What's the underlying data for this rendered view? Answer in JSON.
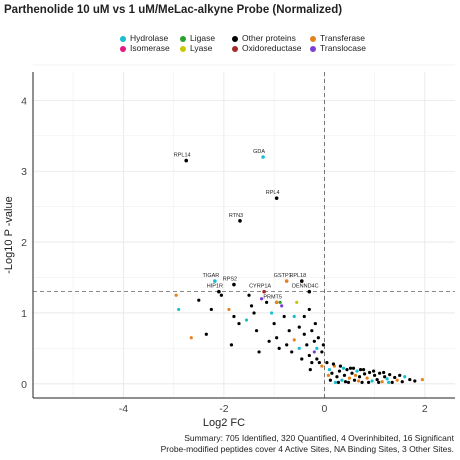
{
  "chart_data": {
    "type": "scatter",
    "title": "Parthenolide 10 uM vs 1 uM/MeLac-alkyne Probe (Normalized)",
    "xlabel": "Log2 FC",
    "ylabel": "-Log10 P -value",
    "xlim": [
      -5.8,
      2.6
    ],
    "ylim": [
      -0.2,
      4.4
    ],
    "x_ticks": [
      "-4",
      "-2",
      "0",
      "2"
    ],
    "y_ticks": [
      "0",
      "1",
      "2",
      "3",
      "4"
    ],
    "grid": true,
    "significance_line_y": 1.3,
    "fc_line_x": 0,
    "legend_position": "top",
    "legend": [
      {
        "name": "Hydrolase",
        "color": "#17becf"
      },
      {
        "name": "Ligase",
        "color": "#2ca02c"
      },
      {
        "name": "Other proteins",
        "color": "#000000"
      },
      {
        "name": "Transferase",
        "color": "#e6821e"
      },
      {
        "name": "Isomerase",
        "color": "#e6197a"
      },
      {
        "name": "Lyase",
        "color": "#c8c800"
      },
      {
        "name": "Oxidoreductase",
        "color": "#a52a2a"
      },
      {
        "name": "Translocase",
        "color": "#7b3fd1"
      }
    ],
    "labeled_points": [
      {
        "label": "RPL14",
        "x": -2.75,
        "y": 3.15,
        "cls": "Other proteins"
      },
      {
        "label": "GDA",
        "x": -1.22,
        "y": 3.2,
        "cls": "Hydrolase"
      },
      {
        "label": "RPL4",
        "x": -0.95,
        "y": 2.62,
        "cls": "Other proteins"
      },
      {
        "label": "RTN3",
        "x": -1.68,
        "y": 2.3,
        "cls": "Other proteins"
      },
      {
        "label": "TIGAR",
        "x": -2.18,
        "y": 1.45,
        "cls": "Hydrolase"
      },
      {
        "label": "RPS2",
        "x": -1.8,
        "y": 1.4,
        "cls": "Other proteins"
      },
      {
        "label": "GSTP1",
        "x": -0.75,
        "y": 1.45,
        "cls": "Transferase"
      },
      {
        "label": "RPL18",
        "x": -0.45,
        "y": 1.45,
        "cls": "Other proteins"
      },
      {
        "label": "HIP1R",
        "x": -2.1,
        "y": 1.3,
        "cls": "Other proteins"
      },
      {
        "label": "CYRP1A",
        "x": -1.2,
        "y": 1.3,
        "cls": "Oxidoreductase"
      },
      {
        "label": "DENND4C",
        "x": -0.3,
        "y": 1.3,
        "cls": "Other proteins"
      },
      {
        "label": "PRMT5",
        "x": -0.95,
        "y": 1.15,
        "cls": "Transferase"
      }
    ],
    "points": [
      {
        "x": -2.95,
        "y": 1.25,
        "cls": "Transferase"
      },
      {
        "x": -2.9,
        "y": 1.05,
        "cls": "Hydrolase"
      },
      {
        "x": -2.5,
        "y": 1.18,
        "cls": "Other proteins"
      },
      {
        "x": -2.25,
        "y": 1.05,
        "cls": "Other proteins"
      },
      {
        "x": -2.65,
        "y": 0.65,
        "cls": "Transferase"
      },
      {
        "x": -2.35,
        "y": 0.7,
        "cls": "Other proteins"
      },
      {
        "x": -2.05,
        "y": 1.25,
        "cls": "Other proteins"
      },
      {
        "x": -1.9,
        "y": 1.05,
        "cls": "Transferase"
      },
      {
        "x": -1.8,
        "y": 0.95,
        "cls": "Other proteins"
      },
      {
        "x": -1.7,
        "y": 0.85,
        "cls": "Other proteins"
      },
      {
        "x": -1.55,
        "y": 0.9,
        "cls": "Hydrolase"
      },
      {
        "x": -1.85,
        "y": 0.55,
        "cls": "Other proteins"
      },
      {
        "x": -1.5,
        "y": 1.25,
        "cls": "Other proteins"
      },
      {
        "x": -1.45,
        "y": 1.1,
        "cls": "Other proteins"
      },
      {
        "x": -1.4,
        "y": 1.0,
        "cls": "Other proteins"
      },
      {
        "x": -1.35,
        "y": 0.75,
        "cls": "Other proteins"
      },
      {
        "x": -1.3,
        "y": 0.45,
        "cls": "Other proteins"
      },
      {
        "x": -1.25,
        "y": 1.2,
        "cls": "Translocase"
      },
      {
        "x": -1.15,
        "y": 1.15,
        "cls": "Other proteins"
      },
      {
        "x": -1.1,
        "y": 0.6,
        "cls": "Other proteins"
      },
      {
        "x": -1.05,
        "y": 1.0,
        "cls": "Hydrolase"
      },
      {
        "x": -1.0,
        "y": 0.85,
        "cls": "Other proteins"
      },
      {
        "x": -0.95,
        "y": 0.65,
        "cls": "Other proteins"
      },
      {
        "x": -0.9,
        "y": 0.5,
        "cls": "Other proteins"
      },
      {
        "x": -0.88,
        "y": 1.15,
        "cls": "Ligase"
      },
      {
        "x": -0.85,
        "y": 1.1,
        "cls": "Translocase"
      },
      {
        "x": -0.8,
        "y": 0.95,
        "cls": "Other proteins"
      },
      {
        "x": -0.75,
        "y": 0.55,
        "cls": "Other proteins"
      },
      {
        "x": -0.7,
        "y": 0.75,
        "cls": "Other proteins"
      },
      {
        "x": -0.65,
        "y": 0.45,
        "cls": "Other proteins"
      },
      {
        "x": -0.6,
        "y": 0.95,
        "cls": "Hydrolase"
      },
      {
        "x": -0.6,
        "y": 0.62,
        "cls": "Transferase"
      },
      {
        "x": -0.55,
        "y": 1.15,
        "cls": "Lyase"
      },
      {
        "x": -0.5,
        "y": 0.8,
        "cls": "Other proteins"
      },
      {
        "x": -0.5,
        "y": 0.5,
        "cls": "Hydrolase"
      },
      {
        "x": -0.45,
        "y": 0.35,
        "cls": "Other proteins"
      },
      {
        "x": -0.4,
        "y": 0.7,
        "cls": "Other proteins"
      },
      {
        "x": -0.4,
        "y": 0.95,
        "cls": "Other proteins"
      },
      {
        "x": -0.35,
        "y": 0.55,
        "cls": "Other proteins"
      },
      {
        "x": -0.3,
        "y": 0.4,
        "cls": "Other proteins"
      },
      {
        "x": -0.3,
        "y": 1.05,
        "cls": "Other proteins"
      },
      {
        "x": -0.25,
        "y": 0.75,
        "cls": "Other proteins"
      },
      {
        "x": -0.25,
        "y": 0.3,
        "cls": "Other proteins"
      },
      {
        "x": -0.2,
        "y": 0.6,
        "cls": "Other proteins"
      },
      {
        "x": -0.2,
        "y": 0.45,
        "cls": "Translocase"
      },
      {
        "x": -0.15,
        "y": 0.5,
        "cls": "Hydrolase"
      },
      {
        "x": -0.15,
        "y": 0.35,
        "cls": "Other proteins"
      },
      {
        "x": -0.12,
        "y": 0.65,
        "cls": "Other proteins"
      },
      {
        "x": -0.1,
        "y": 0.3,
        "cls": "Other proteins"
      },
      {
        "x": -0.05,
        "y": 0.45,
        "cls": "Other proteins"
      },
      {
        "x": -0.05,
        "y": 0.25,
        "cls": "Transferase"
      },
      {
        "x": -0.02,
        "y": 0.55,
        "cls": "Other proteins"
      },
      {
        "x": -0.28,
        "y": 0.2,
        "cls": "Other proteins"
      },
      {
        "x": -0.18,
        "y": 0.85,
        "cls": "Other proteins"
      },
      {
        "x": 0.05,
        "y": 0.3,
        "cls": "Other proteins"
      },
      {
        "x": 0.1,
        "y": 0.2,
        "cls": "Hydrolase"
      },
      {
        "x": 0.15,
        "y": 0.15,
        "cls": "Other proteins"
      },
      {
        "x": 0.2,
        "y": 0.25,
        "cls": "Transferase"
      },
      {
        "x": 0.25,
        "y": 0.1,
        "cls": "Other proteins"
      },
      {
        "x": 0.3,
        "y": 0.18,
        "cls": "Other proteins"
      },
      {
        "x": 0.35,
        "y": 0.05,
        "cls": "Hydrolase"
      },
      {
        "x": 0.4,
        "y": 0.12,
        "cls": "Other proteins"
      },
      {
        "x": 0.45,
        "y": 0.2,
        "cls": "Other proteins"
      },
      {
        "x": 0.5,
        "y": 0.08,
        "cls": "Transferase"
      },
      {
        "x": 0.55,
        "y": 0.15,
        "cls": "Other proteins"
      },
      {
        "x": 0.6,
        "y": 0.05,
        "cls": "Other proteins"
      },
      {
        "x": 0.65,
        "y": 0.18,
        "cls": "Hydrolase"
      },
      {
        "x": 0.7,
        "y": 0.1,
        "cls": "Other proteins"
      },
      {
        "x": 0.75,
        "y": 0.02,
        "cls": "Other proteins"
      },
      {
        "x": 0.8,
        "y": 0.14,
        "cls": "Other proteins"
      },
      {
        "x": 0.85,
        "y": 0.08,
        "cls": "Transferase"
      },
      {
        "x": 0.9,
        "y": 0.16,
        "cls": "Other proteins"
      },
      {
        "x": 0.95,
        "y": 0.04,
        "cls": "Hydrolase"
      },
      {
        "x": 1.0,
        "y": 0.12,
        "cls": "Other proteins"
      },
      {
        "x": 1.05,
        "y": 0.06,
        "cls": "Other proteins"
      },
      {
        "x": 1.1,
        "y": 0.15,
        "cls": "Other proteins"
      },
      {
        "x": 1.15,
        "y": 0.03,
        "cls": "Transferase"
      },
      {
        "x": 1.2,
        "y": 0.1,
        "cls": "Other proteins"
      },
      {
        "x": 1.25,
        "y": 0.07,
        "cls": "Hydrolase"
      },
      {
        "x": 1.3,
        "y": 0.13,
        "cls": "Other proteins"
      },
      {
        "x": 1.35,
        "y": 0.02,
        "cls": "Other proteins"
      },
      {
        "x": 1.4,
        "y": 0.09,
        "cls": "Other proteins"
      },
      {
        "x": 1.45,
        "y": 0.05,
        "cls": "Transferase"
      },
      {
        "x": 1.5,
        "y": 0.12,
        "cls": "Other proteins"
      },
      {
        "x": 1.55,
        "y": 0.03,
        "cls": "Other proteins"
      },
      {
        "x": 1.6,
        "y": 0.1,
        "cls": "Hydrolase"
      },
      {
        "x": 1.7,
        "y": 0.06,
        "cls": "Other proteins"
      },
      {
        "x": 1.8,
        "y": 0.04,
        "cls": "Other proteins"
      },
      {
        "x": 1.95,
        "y": 0.06,
        "cls": "Transferase"
      },
      {
        "x": 0.12,
        "y": 0.05,
        "cls": "Other proteins"
      },
      {
        "x": 0.22,
        "y": 0.02,
        "cls": "Hydrolase"
      },
      {
        "x": 0.32,
        "y": 0.25,
        "cls": "Other proteins"
      },
      {
        "x": 0.42,
        "y": 0.03,
        "cls": "Other proteins"
      },
      {
        "x": 0.52,
        "y": 0.22,
        "cls": "Other proteins"
      },
      {
        "x": 0.62,
        "y": 0.12,
        "cls": "Transferase"
      },
      {
        "x": 0.72,
        "y": 0.2,
        "cls": "Other proteins"
      },
      {
        "x": 0.08,
        "y": 0.12,
        "cls": "Transferase"
      },
      {
        "x": 0.18,
        "y": 0.28,
        "cls": "Other proteins"
      },
      {
        "x": 0.28,
        "y": 0.02,
        "cls": "Other proteins"
      },
      {
        "x": 0.38,
        "y": 0.22,
        "cls": "Hydrolase"
      },
      {
        "x": 0.48,
        "y": 0.02,
        "cls": "Other proteins"
      },
      {
        "x": 0.58,
        "y": 0.22,
        "cls": "Other proteins"
      },
      {
        "x": 0.68,
        "y": 0.04,
        "cls": "Transferase"
      },
      {
        "x": 0.78,
        "y": 0.2,
        "cls": "Other proteins"
      },
      {
        "x": 0.88,
        "y": 0.02,
        "cls": "Other proteins"
      },
      {
        "x": 0.98,
        "y": 0.18,
        "cls": "Other proteins"
      },
      {
        "x": 1.08,
        "y": 0.02,
        "cls": "Other proteins"
      },
      {
        "x": 1.18,
        "y": 0.16,
        "cls": "Other proteins"
      },
      {
        "x": 1.28,
        "y": 0.02,
        "cls": "Hydrolase"
      }
    ]
  },
  "footer": {
    "line1": "Summary: 705 Identified, 320 Quantified, 4 Overinhibited, 16 Significant",
    "line2": "Probe-modified peptides cover 4 Active Sites, NA Binding Sites, 3 Other Sites."
  }
}
